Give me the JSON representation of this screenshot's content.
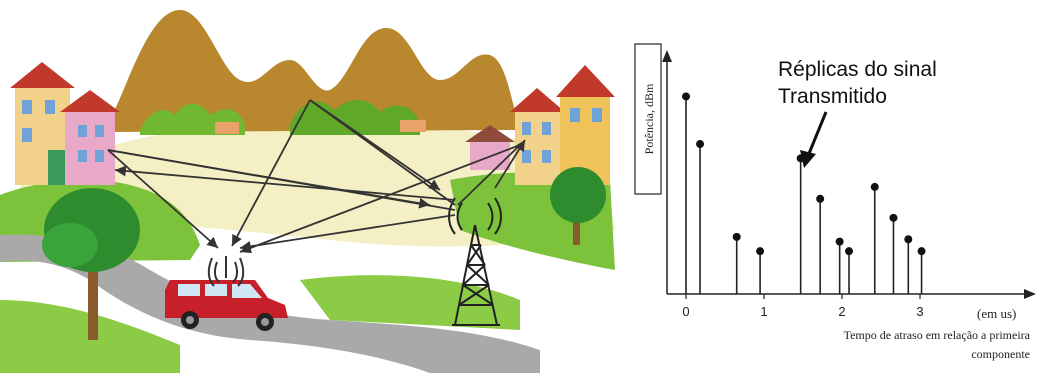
{
  "scene": {
    "description_icons": [
      "mountain-icon",
      "house-icon",
      "tree-icon",
      "car-icon",
      "radio-tower-icon",
      "antenna-icon"
    ],
    "colors": {
      "mountain": "#b8872e",
      "grass": "#7cc23a",
      "road": "#a9a9a9",
      "field": "#f4efc4",
      "car": "#c8202a",
      "tower": "#222222",
      "arrow": "#333333"
    }
  },
  "chart_data": {
    "type": "stem",
    "annotation_line1": "Réplicas do sinal",
    "annotation_line2": "Transmitido",
    "ylabel": "Potência, dBm",
    "xlabel_line1": "Tempo de atraso em relação a primeira",
    "xlabel_line2": "componente",
    "x_unit_label": "(em us)",
    "xlim": [
      -0.2,
      3.9
    ],
    "ylim": [
      0,
      1
    ],
    "x_ticks": [
      0,
      1,
      2,
      3
    ],
    "x_tick_labels": [
      "0",
      "1",
      "2",
      "3"
    ],
    "points": [
      {
        "x": 0.0,
        "y": 0.83
      },
      {
        "x": 0.18,
        "y": 0.63
      },
      {
        "x": 0.65,
        "y": 0.24
      },
      {
        "x": 0.95,
        "y": 0.18
      },
      {
        "x": 1.47,
        "y": 0.57
      },
      {
        "x": 1.72,
        "y": 0.4
      },
      {
        "x": 1.97,
        "y": 0.22
      },
      {
        "x": 2.09,
        "y": 0.18
      },
      {
        "x": 2.42,
        "y": 0.45
      },
      {
        "x": 2.66,
        "y": 0.32
      },
      {
        "x": 2.85,
        "y": 0.23
      },
      {
        "x": 3.02,
        "y": 0.18
      }
    ]
  }
}
